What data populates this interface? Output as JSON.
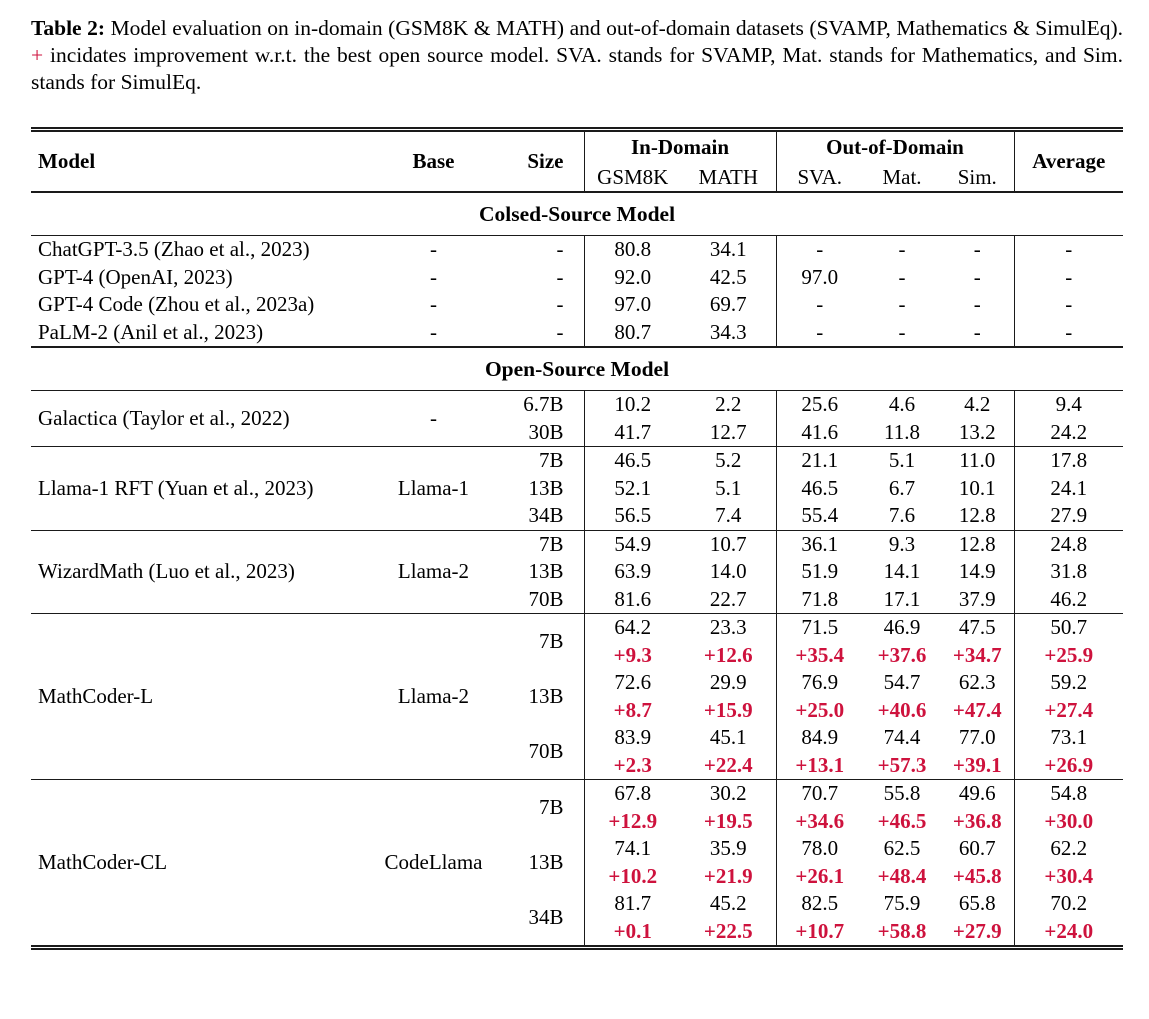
{
  "colors": {
    "delta_red": "#ce123d",
    "rule_color": "#1a1a1a"
  },
  "caption": {
    "label": "Table 2:",
    "text_before_plus": "Model evaluation on in-domain (GSM8K & MATH) and out-of-domain datasets (SVAMP, Mathematics & SimulEq).",
    "plus_sign": "+",
    "text_after_plus": "incidates improvement w.r.t. the best open source model. SVA. stands for SVAMP, Mat. stands for Mathematics, and Sim. stands for SimulEq."
  },
  "table": {
    "header": {
      "model": "Model",
      "base": "Base",
      "size": "Size",
      "in_domain": "In-Domain",
      "out_of_domain": "Out-of-Domain",
      "average": "Average",
      "sub_columns": [
        "GSM8K",
        "MATH",
        "SVA.",
        "Mat.",
        "Sim."
      ]
    },
    "sections": [
      {
        "title": "Colsed-Source Model",
        "divide_groups": false,
        "groups": [
          {
            "model": "ChatGPT-3.5 (Zhao et al., 2023)",
            "base": "-",
            "rows": [
              {
                "size": "-",
                "values": [
                  "80.8",
                  "34.1",
                  "-",
                  "-",
                  "-",
                  "-"
                ]
              }
            ]
          },
          {
            "model": "GPT-4 (OpenAI, 2023)",
            "base": "-",
            "rows": [
              {
                "size": "-",
                "values": [
                  "92.0",
                  "42.5",
                  "97.0",
                  "-",
                  "-",
                  "-"
                ]
              }
            ]
          },
          {
            "model": "GPT-4 Code (Zhou et al., 2023a)",
            "base": "-",
            "rows": [
              {
                "size": "-",
                "values": [
                  "97.0",
                  "69.7",
                  "-",
                  "-",
                  "-",
                  "-"
                ]
              }
            ]
          },
          {
            "model": "PaLM-2 (Anil et al., 2023)",
            "base": "-",
            "rows": [
              {
                "size": "-",
                "values": [
                  "80.7",
                  "34.3",
                  "-",
                  "-",
                  "-",
                  "-"
                ]
              }
            ]
          }
        ]
      },
      {
        "title": "Open-Source Model",
        "divide_groups": true,
        "groups": [
          {
            "model": "Galactica (Taylor et al., 2022)",
            "base": "-",
            "rows": [
              {
                "size": "6.7B",
                "values": [
                  "10.2",
                  "2.2",
                  "25.6",
                  "4.6",
                  "4.2",
                  "9.4"
                ]
              },
              {
                "size": "30B",
                "values": [
                  "41.7",
                  "12.7",
                  "41.6",
                  "11.8",
                  "13.2",
                  "24.2"
                ]
              }
            ]
          },
          {
            "model": "Llama-1 RFT (Yuan et al., 2023)",
            "base": "Llama-1",
            "rows": [
              {
                "size": "7B",
                "values": [
                  "46.5",
                  "5.2",
                  "21.1",
                  "5.1",
                  "11.0",
                  "17.8"
                ]
              },
              {
                "size": "13B",
                "values": [
                  "52.1",
                  "5.1",
                  "46.5",
                  "6.7",
                  "10.1",
                  "24.1"
                ]
              },
              {
                "size": "34B",
                "values": [
                  "56.5",
                  "7.4",
                  "55.4",
                  "7.6",
                  "12.8",
                  "27.9"
                ]
              }
            ]
          },
          {
            "model": "WizardMath (Luo et al., 2023)",
            "base": "Llama-2",
            "rows": [
              {
                "size": "7B",
                "values": [
                  "54.9",
                  "10.7",
                  "36.1",
                  "9.3",
                  "12.8",
                  "24.8"
                ]
              },
              {
                "size": "13B",
                "values": [
                  "63.9",
                  "14.0",
                  "51.9",
                  "14.1",
                  "14.9",
                  "31.8"
                ]
              },
              {
                "size": "70B",
                "values": [
                  "81.6",
                  "22.7",
                  "71.8",
                  "17.1",
                  "37.9",
                  "46.2"
                ]
              }
            ]
          },
          {
            "model": "MathCoder-L",
            "base": "Llama-2",
            "rows": [
              {
                "size": "7B",
                "values": [
                  "64.2",
                  "23.3",
                  "71.5",
                  "46.9",
                  "47.5",
                  "50.7"
                ],
                "deltas": [
                  "+9.3",
                  "+12.6",
                  "+35.4",
                  "+37.6",
                  "+34.7",
                  "+25.9"
                ]
              },
              {
                "size": "13B",
                "values": [
                  "72.6",
                  "29.9",
                  "76.9",
                  "54.7",
                  "62.3",
                  "59.2"
                ],
                "deltas": [
                  "+8.7",
                  "+15.9",
                  "+25.0",
                  "+40.6",
                  "+47.4",
                  "+27.4"
                ]
              },
              {
                "size": "70B",
                "values": [
                  "83.9",
                  "45.1",
                  "84.9",
                  "74.4",
                  "77.0",
                  "73.1"
                ],
                "deltas": [
                  "+2.3",
                  "+22.4",
                  "+13.1",
                  "+57.3",
                  "+39.1",
                  "+26.9"
                ]
              }
            ]
          },
          {
            "model": "MathCoder-CL",
            "base": "CodeLlama",
            "rows": [
              {
                "size": "7B",
                "values": [
                  "67.8",
                  "30.2",
                  "70.7",
                  "55.8",
                  "49.6",
                  "54.8"
                ],
                "deltas": [
                  "+12.9",
                  "+19.5",
                  "+34.6",
                  "+46.5",
                  "+36.8",
                  "+30.0"
                ]
              },
              {
                "size": "13B",
                "values": [
                  "74.1",
                  "35.9",
                  "78.0",
                  "62.5",
                  "60.7",
                  "62.2"
                ],
                "deltas": [
                  "+10.2",
                  "+21.9",
                  "+26.1",
                  "+48.4",
                  "+45.8",
                  "+30.4"
                ]
              },
              {
                "size": "34B",
                "values": [
                  "81.7",
                  "45.2",
                  "82.5",
                  "75.9",
                  "65.8",
                  "70.2"
                ],
                "deltas": [
                  "+0.1",
                  "+22.5",
                  "+10.7",
                  "+58.8",
                  "+27.9",
                  "+24.0"
                ]
              }
            ]
          }
        ]
      }
    ]
  }
}
